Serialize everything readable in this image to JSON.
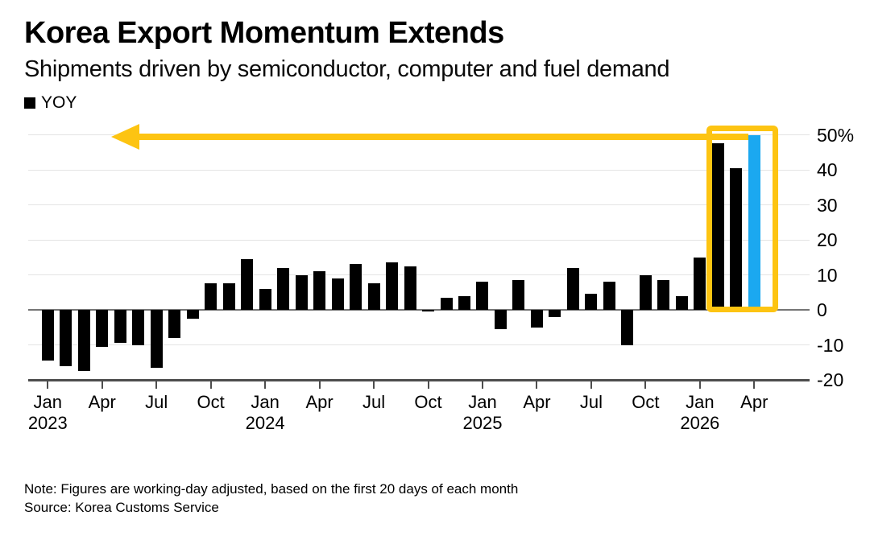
{
  "header": {
    "title": "Korea Export Momentum Extends",
    "subtitle": "Shipments driven by semiconductor, computer and fuel demand"
  },
  "legend": {
    "label": "YOY",
    "swatch_color": "#000000"
  },
  "footer": {
    "note": "Note: Figures are working-day adjusted, based on the first 20 days of each month",
    "source": "Source: Korea Customs Service"
  },
  "colors": {
    "bar": "#000000",
    "highlight_bar": "#1ba8f0",
    "annotation_yellow": "#fdc412",
    "grid": "#e4e4e4",
    "zero_line": "#757575",
    "axis_line": "#4d4d4d"
  },
  "chart_data": {
    "type": "bar",
    "title": "Korea Export Momentum Extends",
    "subtitle": "Shipments driven by semiconductor, computer and fuel demand",
    "series_name": "YOY",
    "unit": "% year-over-year",
    "grid": true,
    "legend_position": "top-left",
    "yaxis_side": "right",
    "ylim": [
      -20,
      50
    ],
    "yticks": [
      50,
      40,
      30,
      20,
      10,
      0,
      -10,
      -20
    ],
    "ytick_labels": [
      "50%",
      "40",
      "30",
      "20",
      "10",
      "0",
      "-10",
      "-20"
    ],
    "months": [
      "Jan 2023",
      "Feb 2023",
      "Mar 2023",
      "Apr 2023",
      "May 2023",
      "Jun 2023",
      "Jul 2023",
      "Aug 2023",
      "Sep 2023",
      "Oct 2023",
      "Nov 2023",
      "Dec 2023",
      "Jan 2024",
      "Feb 2024",
      "Mar 2024",
      "Apr 2024",
      "May 2024",
      "Jun 2024",
      "Jul 2024",
      "Aug 2024",
      "Sep 2024",
      "Oct 2024",
      "Nov 2024",
      "Dec 2024",
      "Jan 2025",
      "Feb 2025",
      "Mar 2025",
      "Apr 2025",
      "May 2025",
      "Jun 2025",
      "Jul 2025",
      "Aug 2025",
      "Sep 2025",
      "Oct 2025",
      "Nov 2025",
      "Dec 2025",
      "Jan 2026",
      "Feb 2026",
      "Mar 2026",
      "Apr 2026"
    ],
    "values": [
      -14.5,
      -16,
      -17.5,
      -10.5,
      -9.5,
      -10,
      -16.5,
      -8,
      -2.5,
      7.5,
      7.5,
      14.5,
      6,
      12,
      10,
      11,
      9,
      13,
      7.5,
      13.5,
      12.5,
      -0.5,
      3.5,
      4,
      8,
      -5.5,
      8.5,
      -5,
      -2,
      12,
      4.5,
      8,
      -10,
      10,
      8.5,
      4,
      15,
      47.5,
      40.5,
      50
    ],
    "highlight_index": 39,
    "xticks": [
      {
        "index": 0,
        "month": "Jan",
        "year": "2023"
      },
      {
        "index": 3,
        "month": "Apr"
      },
      {
        "index": 6,
        "month": "Jul"
      },
      {
        "index": 9,
        "month": "Oct"
      },
      {
        "index": 12,
        "month": "Jan",
        "year": "2024"
      },
      {
        "index": 15,
        "month": "Apr"
      },
      {
        "index": 18,
        "month": "Jul"
      },
      {
        "index": 21,
        "month": "Oct"
      },
      {
        "index": 24,
        "month": "Jan",
        "year": "2025"
      },
      {
        "index": 27,
        "month": "Apr"
      },
      {
        "index": 30,
        "month": "Jul"
      },
      {
        "index": 33,
        "month": "Oct"
      },
      {
        "index": 36,
        "month": "Jan",
        "year": "2026"
      },
      {
        "index": 39,
        "month": "Apr"
      }
    ],
    "annotations": {
      "arrow": {
        "shape": "left-pointing-arrow",
        "color": "#fdc412",
        "from_month": "Apr 2026",
        "at_value": 50,
        "description": "Yellow arrow extending left from the Apr 2026 bar across the top of the chart"
      },
      "highlight_box": {
        "shape": "rectangle-outline",
        "color": "#fdc412",
        "from_month": "Feb 2026",
        "to_month": "Apr 2026",
        "description": "Yellow rectangle highlighting the last three bars"
      }
    }
  }
}
